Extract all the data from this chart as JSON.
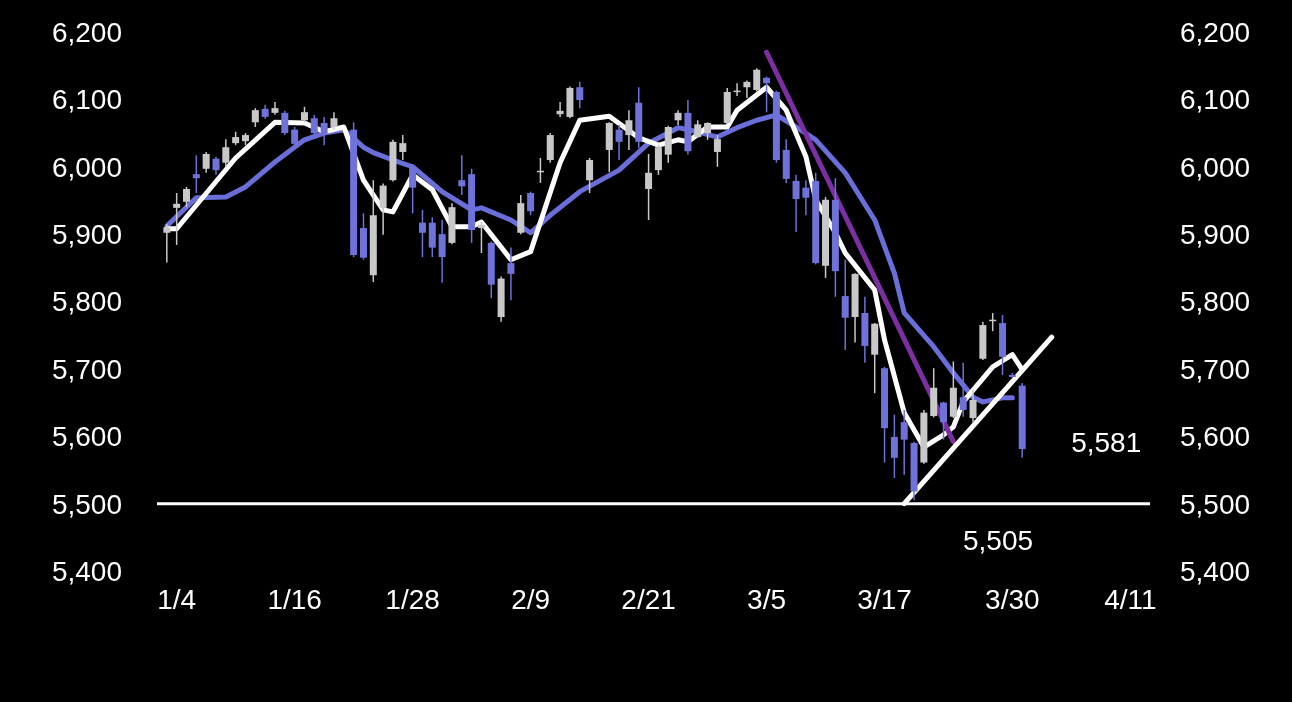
{
  "chart_data": {
    "type": "candlestick",
    "x": [
      "--01-03",
      "--01-04",
      "--01-05",
      "--01-06",
      "--01-07",
      "--01-08",
      "--01-09",
      "--01-10",
      "--01-11",
      "--01-12",
      "--01-13",
      "--01-14",
      "--01-15",
      "--01-16",
      "--01-17",
      "--01-18",
      "--01-19",
      "--01-20",
      "--01-22",
      "--01-23",
      "--01-24",
      "--01-25",
      "--01-26",
      "--01-27",
      "--01-28",
      "--01-29",
      "--01-30",
      "--01-31",
      "--02-01",
      "--02-02",
      "--02-03",
      "--02-04",
      "--02-05",
      "--02-06",
      "--02-07",
      "--02-08",
      "--02-09",
      "--02-10",
      "--02-11",
      "--02-12",
      "--02-13",
      "--02-14",
      "--02-15",
      "--02-17",
      "--02-18",
      "--02-19",
      "--02-20",
      "--02-21",
      "--02-22",
      "--02-23",
      "--02-24",
      "--02-25",
      "--02-26",
      "--02-27",
      "--02-28",
      "--03-01",
      "--03-02",
      "--03-03",
      "--03-04",
      "--03-05",
      "--03-06",
      "--03-07",
      "--03-08",
      "--03-09",
      "--03-10",
      "--03-11",
      "--03-12",
      "--03-13",
      "--03-14",
      "--03-15",
      "--03-16",
      "--03-17",
      "--03-18",
      "--03-19",
      "--03-20",
      "--03-21",
      "--03-22",
      "--03-23",
      "--03-24",
      "--03-25",
      "--03-26",
      "--03-27",
      "--03-28",
      "--03-29",
      "--03-30",
      "--03-31"
    ],
    "ohlc": [
      [
        5902,
        5915,
        5858,
        5910
      ],
      [
        5939,
        5961,
        5884,
        5945
      ],
      [
        5948,
        5970,
        5940,
        5967
      ],
      [
        5989,
        6017,
        5961,
        5983
      ],
      [
        5997,
        6022,
        5991,
        6019
      ],
      [
        6012,
        6015,
        5988,
        5995
      ],
      [
        6006,
        6041,
        6000,
        6029
      ],
      [
        6035,
        6052,
        6032,
        6044
      ],
      [
        6038,
        6050,
        6032,
        6047
      ],
      [
        6066,
        6087,
        6059,
        6084
      ],
      [
        6086,
        6092,
        6071,
        6074
      ],
      [
        6080,
        6096,
        6077,
        6087
      ],
      [
        6080,
        6083,
        6047,
        6050
      ],
      [
        6055,
        6059,
        6031,
        6034
      ],
      [
        6069,
        6089,
        6066,
        6081
      ],
      [
        6072,
        6077,
        6047,
        6050
      ],
      [
        6065,
        6074,
        6032,
        6047
      ],
      [
        6059,
        6081,
        6055,
        6072
      ],
      [
        6055,
        6066,
        5866,
        5869
      ],
      [
        5909,
        5931,
        5862,
        5865
      ],
      [
        5839,
        5980,
        5829,
        5928
      ],
      [
        5939,
        5975,
        5899,
        5972
      ],
      [
        5980,
        6040,
        5978,
        6037
      ],
      [
        6022,
        6047,
        6010,
        6035
      ],
      [
        6000,
        6003,
        5931,
        5969
      ],
      [
        5917,
        5936,
        5866,
        5902
      ],
      [
        5917,
        5925,
        5866,
        5880
      ],
      [
        5900,
        5921,
        5828,
        5866
      ],
      [
        5887,
        5946,
        5885,
        5940
      ],
      [
        5980,
        6017,
        5958,
        5971
      ],
      [
        5989,
        5997,
        5887,
        5906
      ],
      [
        5909,
        5918,
        5872,
        5914
      ],
      [
        5887,
        5889,
        5805,
        5825
      ],
      [
        5777,
        5837,
        5770,
        5834
      ],
      [
        5857,
        5880,
        5802,
        5841
      ],
      [
        5902,
        5958,
        5900,
        5946
      ],
      [
        5961,
        5963,
        5928,
        5934
      ],
      [
        5993,
        6013,
        5976,
        5994
      ],
      [
        6010,
        6050,
        6006,
        6047
      ],
      [
        6078,
        6096,
        6074,
        6083
      ],
      [
        6074,
        6119,
        6072,
        6117
      ],
      [
        6118,
        6126,
        6087,
        6099
      ],
      [
        5980,
        6013,
        5961,
        6010
      ],
      [
        6025,
        6066,
        5992,
        6065
      ],
      [
        6055,
        6062,
        6010,
        6037
      ],
      [
        6047,
        6084,
        6025,
        6069
      ],
      [
        6095,
        6118,
        6028,
        6037
      ],
      [
        5967,
        6019,
        5921,
        5991
      ],
      [
        5995,
        6032,
        5988,
        6029
      ],
      [
        6018,
        6061,
        6006,
        6059
      ],
      [
        6069,
        6084,
        6062,
        6080
      ],
      [
        6080,
        6099,
        6018,
        6023
      ],
      [
        6044,
        6069,
        6043,
        6063
      ],
      [
        6050,
        6066,
        6040,
        6065
      ],
      [
        6022,
        6047,
        6000,
        6041
      ],
      [
        6065,
        6117,
        6063,
        6111
      ],
      [
        6112,
        6124,
        6105,
        6113
      ],
      [
        6118,
        6128,
        6102,
        6126
      ],
      [
        6114,
        6146,
        6112,
        6144
      ],
      [
        6132,
        6134,
        6081,
        6124
      ],
      [
        6111,
        6113,
        6006,
        6010
      ],
      [
        6025,
        6041,
        5976,
        5982
      ],
      [
        5979,
        5988,
        5903,
        5952
      ],
      [
        5969,
        5980,
        5928,
        5954
      ],
      [
        5979,
        5991,
        5855,
        5857
      ],
      [
        5853,
        5955,
        5835,
        5951
      ],
      [
        5951,
        5983,
        5807,
        5845
      ],
      [
        5808,
        5862,
        5728,
        5776
      ],
      [
        5777,
        5842,
        5739,
        5841
      ],
      [
        5783,
        5807,
        5709,
        5734
      ],
      [
        5721,
        5768,
        5664,
        5767
      ],
      [
        5701,
        5703,
        5561,
        5612
      ],
      [
        5599,
        5632,
        5538,
        5568
      ],
      [
        5621,
        5639,
        5543,
        5595
      ],
      [
        5590,
        5592,
        5505,
        5518
      ],
      [
        5561,
        5639,
        5559,
        5635
      ],
      [
        5630,
        5701,
        5628,
        5672
      ],
      [
        5650,
        5651,
        5595,
        5621
      ],
      [
        5629,
        5711,
        5627,
        5672
      ],
      [
        5658,
        5709,
        5629,
        5639
      ],
      [
        5627,
        5669,
        5620,
        5654
      ],
      [
        5715,
        5770,
        5713,
        5765
      ],
      [
        5772,
        5783,
        5756,
        5773
      ],
      [
        5768,
        5780,
        5691,
        5718
      ],
      [
        5691,
        5694,
        5687,
        5688
      ],
      [
        5675,
        5679,
        5568,
        5581
      ]
    ],
    "colors": [
      "#c8c8c8",
      "#c8c8c8",
      "#c8c8c8",
      "#6e72d9",
      "#c8c8c8",
      "#6e72d9",
      "#c8c8c8",
      "#c8c8c8",
      "#c8c8c8",
      "#c8c8c8",
      "#6e72d9",
      "#c8c8c8",
      "#6e72d9",
      "#6e72d9",
      "#c8c8c8",
      "#6e72d9",
      "#6e72d9",
      "#c8c8c8",
      "#6e72d9",
      "#6e72d9",
      "#c8c8c8",
      "#c8c8c8",
      "#c8c8c8",
      "#c8c8c8",
      "#6e72d9",
      "#6e72d9",
      "#6e72d9",
      "#6e72d9",
      "#c8c8c8",
      "#6e72d9",
      "#6e72d9",
      "#c8c8c8",
      "#6e72d9",
      "#c8c8c8",
      "#6e72d9",
      "#c8c8c8",
      "#6e72d9",
      "#c8c8c8",
      "#c8c8c8",
      "#c8c8c8",
      "#c8c8c8",
      "#6e72d9",
      "#c8c8c8",
      "#c8c8c8",
      "#6e72d9",
      "#c8c8c8",
      "#6e72d9",
      "#c8c8c8",
      "#c8c8c8",
      "#c8c8c8",
      "#c8c8c8",
      "#6e72d9",
      "#c8c8c8",
      "#c8c8c8",
      "#c8c8c8",
      "#c8c8c8",
      "#c8c8c8",
      "#c8c8c8",
      "#c8c8c8",
      "#6e72d9",
      "#6e72d9",
      "#6e72d9",
      "#6e72d9",
      "#6e72d9",
      "#6e72d9",
      "#c8c8c8",
      "#6e72d9",
      "#6e72d9",
      "#c8c8c8",
      "#6e72d9",
      "#c8c8c8",
      "#6e72d9",
      "#6e72d9",
      "#6e72d9",
      "#6e72d9",
      "#c8c8c8",
      "#c8c8c8",
      "#6e72d9",
      "#c8c8c8",
      "#6e72d9",
      "#c8c8c8",
      "#c8c8c8",
      "#c8c8c8",
      "#6e72d9",
      "#6e72d9",
      "#6e72d9"
    ],
    "series": [
      {
        "type": "line",
        "color": "#6a6ed8",
        "x": [
          "--01-03",
          "--01-06",
          "--01-09",
          "--01-11",
          "--01-14",
          "--01-17",
          "--01-19",
          "--01-21",
          "--01-23",
          "--01-24",
          "--01-26",
          "--01-28",
          "--01-31",
          "--02-03",
          "--02-04",
          "--02-07",
          "--02-09",
          "--02-11",
          "--02-14",
          "--02-18",
          "--02-21",
          "--02-24",
          "--02-26",
          "--02-28",
          "--03-02",
          "--03-04",
          "--03-06",
          "--03-08",
          "--03-10",
          "--03-13",
          "--03-16",
          "--03-18",
          "--03-19",
          "--03-22",
          "--03-24",
          "--03-26",
          "--03-27",
          "--03-29",
          "--03-30"
        ],
        "values": [
          5912,
          5954,
          5955,
          5970,
          6007,
          6040,
          6050,
          6055,
          6029,
          6021,
          6010,
          6000,
          5963,
          5936,
          5939,
          5921,
          5902,
          5928,
          5963,
          5995,
          6035,
          6058,
          6052,
          6044,
          6058,
          6069,
          6077,
          6059,
          6040,
          5991,
          5921,
          5842,
          5783,
          5733,
          5694,
          5658,
          5651,
          5657,
          5657
        ]
      },
      {
        "type": "line",
        "color": "#ffffff",
        "x": [
          "--01-03",
          "--01-04",
          "--01-10",
          "--01-14",
          "--01-17",
          "--01-19",
          "--01-21",
          "--01-23",
          "--01-25",
          "--01-26",
          "--01-28",
          "--01-30",
          "--02-01",
          "--02-03",
          "--02-04",
          "--02-07",
          "--02-09",
          "--02-12",
          "--02-14",
          "--02-17",
          "--02-20",
          "--02-22",
          "--02-24",
          "--02-25",
          "--02-27",
          "--03-01",
          "--03-02",
          "--03-05",
          "--03-07",
          "--03-09",
          "--03-10",
          "--03-12",
          "--03-13",
          "--03-16",
          "--03-17",
          "--03-19",
          "--03-21",
          "--03-23",
          "--03-24",
          "--03-25",
          "--03-28",
          "--03-30",
          "--03-31"
        ],
        "values": [
          5908,
          5908,
          6013,
          6066,
          6065,
          6052,
          6059,
          5980,
          5936,
          5933,
          5988,
          5966,
          5911,
          5911,
          5918,
          5862,
          5874,
          6006,
          6069,
          6075,
          6043,
          6032,
          6040,
          6037,
          6059,
          6059,
          6084,
          6118,
          6084,
          6015,
          5951,
          5902,
          5872,
          5817,
          5743,
          5635,
          5584,
          5602,
          5614,
          5651,
          5703,
          5721,
          5699
        ]
      },
      {
        "type": "line",
        "color": "#7b2fa3",
        "x": [
          "--03-05",
          "--03-24"
        ],
        "values": [
          6170,
          5592
        ]
      },
      {
        "type": "line",
        "color": "#ffffff",
        "x": [
          "--03-19",
          "--04-03"
        ],
        "values": [
          5500,
          5747
        ]
      }
    ],
    "xlim": [
      "--01-02",
      "--04-13"
    ],
    "xticks": [
      {
        "value": "--01-04",
        "label": "1/4"
      },
      {
        "value": "--01-16",
        "label": "1/16"
      },
      {
        "value": "--01-28",
        "label": "1/28"
      },
      {
        "value": "--02-09",
        "label": "2/9"
      },
      {
        "value": "--02-21",
        "label": "2/21"
      },
      {
        "value": "--03-05",
        "label": "3/5"
      },
      {
        "value": "--03-17",
        "label": "3/17"
      },
      {
        "value": "--03-30",
        "label": "3/30"
      },
      {
        "value": "--04-11",
        "label": "4/11"
      }
    ],
    "ylim": [
      5400,
      6200
    ],
    "yticks": [
      {
        "value": 5400,
        "label": "5,400"
      },
      {
        "value": 5500,
        "label": "5,500"
      },
      {
        "value": 5600,
        "label": "5,600"
      },
      {
        "value": 5700,
        "label": "5,700"
      },
      {
        "value": 5800,
        "label": "5,800"
      },
      {
        "value": 5900,
        "label": "5,900"
      },
      {
        "value": 6000,
        "label": "6,000"
      },
      {
        "value": 6100,
        "label": "6,100"
      },
      {
        "value": 6200,
        "label": "6,200"
      }
    ],
    "y2lim": [
      5400,
      6200
    ],
    "y2ticks": [
      {
        "value": 5400,
        "label": "5,400"
      },
      {
        "value": 5500,
        "label": "5,500"
      },
      {
        "value": 5600,
        "label": "5,600"
      },
      {
        "value": 5700,
        "label": "5,700"
      },
      {
        "value": 5800,
        "label": "5,800"
      },
      {
        "value": 5900,
        "label": "5,900"
      },
      {
        "value": 6000,
        "label": "6,000"
      },
      {
        "value": 6100,
        "label": "6,100"
      },
      {
        "value": 6200,
        "label": "6,200"
      }
    ],
    "ref_lines": [
      {
        "axis": "y",
        "value": 5500,
        "color": "#ffffff"
      }
    ],
    "annotations": [
      {
        "text": "5,581",
        "x": "--03-31",
        "y": 5581
      },
      {
        "text": "5,505",
        "x": "--03-20",
        "y": 5505
      }
    ]
  }
}
